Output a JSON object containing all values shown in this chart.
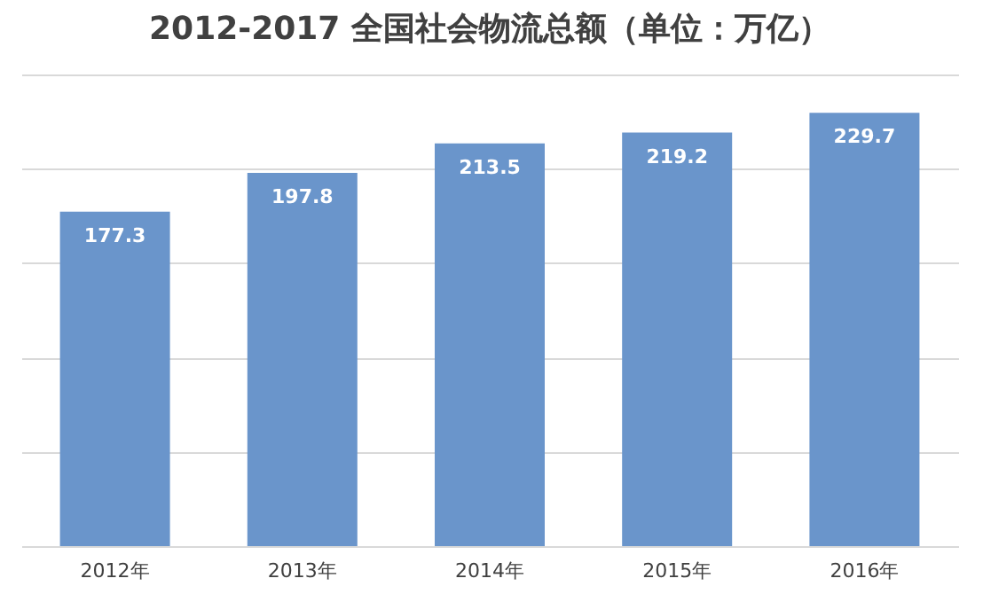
{
  "chart_data": {
    "type": "bar",
    "title": "2012-2017 全国社会物流总额（单位：万亿）",
    "categories": [
      "2012年",
      "2013年",
      "2014年",
      "2015年",
      "2016年"
    ],
    "values": [
      177.3,
      197.8,
      213.5,
      219.2,
      229.7
    ],
    "color": "#6a95cb",
    "data_labels": true,
    "ylim": [
      0,
      250
    ],
    "yticks": [
      {
        "value": 0,
        "label": null
      },
      {
        "value": 50,
        "label": null
      },
      {
        "value": 100,
        "label": null
      },
      {
        "value": 150,
        "label": null
      },
      {
        "value": 200,
        "label": null
      },
      {
        "value": 250,
        "label": null
      }
    ],
    "tick_labels": "x",
    "grid": "y"
  }
}
